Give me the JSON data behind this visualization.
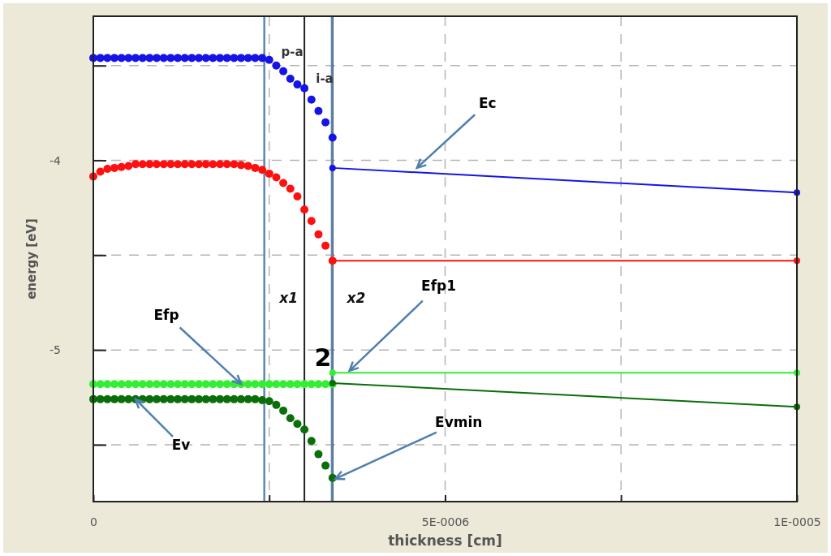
{
  "chart_data": {
    "type": "line",
    "xlabel": "thickness [cm]",
    "ylabel": "energy [eV]",
    "xlim": [
      0,
      1e-05
    ],
    "ylim": [
      -5.8,
      -3.24
    ],
    "xticks": [
      0,
      {
        "value": 2.5e-06,
        "label": null
      },
      {
        "value": 5e-06,
        "label": "5E-0006"
      },
      {
        "value": 7.5e-06,
        "label": null
      },
      {
        "value": 1e-05,
        "label": "1E-0005"
      }
    ],
    "yticks": [
      {
        "value": -3.5,
        "label": null
      },
      -4,
      {
        "value": -4.5,
        "label": null
      },
      -5,
      {
        "value": -5.5,
        "label": null
      }
    ],
    "grid": true,
    "marker": "circle",
    "series": [
      {
        "type": "scatter",
        "color": "#1414e6",
        "x": [
          0,
          1e-07,
          2e-07,
          3e-07,
          4e-07,
          5e-07,
          6e-07,
          7e-07,
          8e-07,
          9e-07,
          1e-06,
          1.1e-06,
          1.2e-06,
          1.3e-06,
          1.4e-06,
          1.5e-06,
          1.6e-06,
          1.7e-06,
          1.8e-06,
          1.9e-06,
          2e-06,
          2.1e-06,
          2.2e-06,
          2.3e-06,
          2.4e-06,
          2.5e-06,
          2.6e-06,
          2.7e-06,
          2.8e-06,
          2.9e-06,
          3e-06,
          3.1e-06,
          3.2e-06,
          3.3e-06,
          3.4e-06
        ],
        "values": [
          -3.46,
          -3.46,
          -3.46,
          -3.46,
          -3.46,
          -3.46,
          -3.46,
          -3.46,
          -3.46,
          -3.46,
          -3.46,
          -3.46,
          -3.46,
          -3.46,
          -3.46,
          -3.46,
          -3.46,
          -3.46,
          -3.46,
          -3.46,
          -3.46,
          -3.46,
          -3.46,
          -3.46,
          -3.46,
          -3.47,
          -3.5,
          -3.53,
          -3.57,
          -3.6,
          -3.62,
          -3.68,
          -3.74,
          -3.8,
          -3.88
        ]
      },
      {
        "color": "#1414e6",
        "x": [
          3.4e-06,
          1e-05
        ],
        "values": [
          -4.04,
          -4.17
        ]
      },
      {
        "type": "scatter",
        "color": "#ff1010",
        "x": [
          0,
          1e-07,
          2e-07,
          3e-07,
          4e-07,
          5e-07,
          6e-07,
          7e-07,
          8e-07,
          9e-07,
          1e-06,
          1.1e-06,
          1.2e-06,
          1.3e-06,
          1.4e-06,
          1.5e-06,
          1.6e-06,
          1.7e-06,
          1.8e-06,
          1.9e-06,
          2e-06,
          2.1e-06,
          2.2e-06,
          2.3e-06,
          2.4e-06,
          2.5e-06,
          2.6e-06,
          2.7e-06,
          2.8e-06,
          2.9e-06,
          3e-06,
          3.1e-06,
          3.2e-06,
          3.3e-06,
          3.4e-06
        ],
        "values": [
          -4.085,
          -4.06,
          -4.045,
          -4.04,
          -4.035,
          -4.03,
          -4.02,
          -4.02,
          -4.02,
          -4.02,
          -4.02,
          -4.02,
          -4.02,
          -4.02,
          -4.02,
          -4.02,
          -4.02,
          -4.02,
          -4.02,
          -4.02,
          -4.02,
          -4.025,
          -4.03,
          -4.04,
          -4.05,
          -4.07,
          -4.09,
          -4.12,
          -4.15,
          -4.19,
          -4.26,
          -4.32,
          -4.39,
          -4.45,
          -4.53
        ]
      },
      {
        "color": "#ff1010",
        "x": [
          3.4e-06,
          1e-05
        ],
        "values": [
          -4.53,
          -4.53
        ]
      },
      {
        "type": "scatter",
        "color": "#33ee33",
        "x": [
          0,
          1e-07,
          2e-07,
          3e-07,
          4e-07,
          5e-07,
          6e-07,
          7e-07,
          8e-07,
          9e-07,
          1e-06,
          1.1e-06,
          1.2e-06,
          1.3e-06,
          1.4e-06,
          1.5e-06,
          1.6e-06,
          1.7e-06,
          1.8e-06,
          1.9e-06,
          2e-06,
          2.1e-06,
          2.2e-06,
          2.3e-06,
          2.4e-06,
          2.5e-06,
          2.6e-06,
          2.7e-06,
          2.8e-06,
          2.9e-06,
          3e-06,
          3.1e-06,
          3.2e-06,
          3.3e-06,
          3.4e-06
        ],
        "values": [
          -5.18,
          -5.18,
          -5.18,
          -5.18,
          -5.18,
          -5.18,
          -5.18,
          -5.18,
          -5.18,
          -5.18,
          -5.18,
          -5.18,
          -5.18,
          -5.18,
          -5.18,
          -5.18,
          -5.18,
          -5.18,
          -5.18,
          -5.18,
          -5.18,
          -5.18,
          -5.18,
          -5.18,
          -5.18,
          -5.18,
          -5.18,
          -5.18,
          -5.18,
          -5.18,
          -5.18,
          -5.18,
          -5.18,
          -5.18,
          -5.18
        ]
      },
      {
        "color": "#33ee33",
        "x": [
          3.4e-06,
          1e-05
        ],
        "values": [
          -5.12,
          -5.12
        ]
      },
      {
        "type": "scatter",
        "color": "#0a6e0a",
        "x": [
          0,
          1e-07,
          2e-07,
          3e-07,
          4e-07,
          5e-07,
          6e-07,
          7e-07,
          8e-07,
          9e-07,
          1e-06,
          1.1e-06,
          1.2e-06,
          1.3e-06,
          1.4e-06,
          1.5e-06,
          1.6e-06,
          1.7e-06,
          1.8e-06,
          1.9e-06,
          2e-06,
          2.1e-06,
          2.2e-06,
          2.3e-06,
          2.4e-06,
          2.5e-06,
          2.6e-06,
          2.7e-06,
          2.8e-06,
          2.9e-06,
          3e-06,
          3.1e-06,
          3.2e-06,
          3.3e-06,
          3.4e-06
        ],
        "values": [
          -5.26,
          -5.26,
          -5.26,
          -5.26,
          -5.26,
          -5.26,
          -5.26,
          -5.26,
          -5.26,
          -5.26,
          -5.26,
          -5.26,
          -5.26,
          -5.26,
          -5.26,
          -5.26,
          -5.26,
          -5.26,
          -5.26,
          -5.26,
          -5.26,
          -5.26,
          -5.26,
          -5.26,
          -5.265,
          -5.27,
          -5.29,
          -5.32,
          -5.36,
          -5.39,
          -5.42,
          -5.48,
          -5.55,
          -5.61,
          -5.675
        ]
      },
      {
        "color": "#0a6e0a",
        "x": [
          3.4e-06,
          1e-05
        ],
        "values": [
          -5.175,
          -5.3
        ]
      }
    ],
    "ref_lines": [
      {
        "axis": "x",
        "value": 3e-06,
        "color": "#222222"
      },
      {
        "axis": "x",
        "value": 3.4e-06,
        "color": "#222222"
      },
      {
        "axis": "x",
        "value": 2.43e-06,
        "label": "x1",
        "color": "#5b87b5"
      },
      {
        "axis": "x",
        "value": 3.39e-06,
        "label": "x2",
        "color": "#5b87b5"
      }
    ],
    "annotations": [
      {
        "text": "Ec",
        "x": 4.6e-06,
        "y": -4.04
      },
      {
        "text": "Efp",
        "x": 2.1e-06,
        "y": -5.18
      },
      {
        "text": "Efp1",
        "x": 3.64e-06,
        "y": -5.11
      },
      {
        "text": "Ev",
        "x": 6e-07,
        "y": -5.26
      },
      {
        "text": "Evmin",
        "x": 3.44e-06,
        "y": -5.68
      },
      "p-a",
      "i-a",
      "2"
    ]
  }
}
